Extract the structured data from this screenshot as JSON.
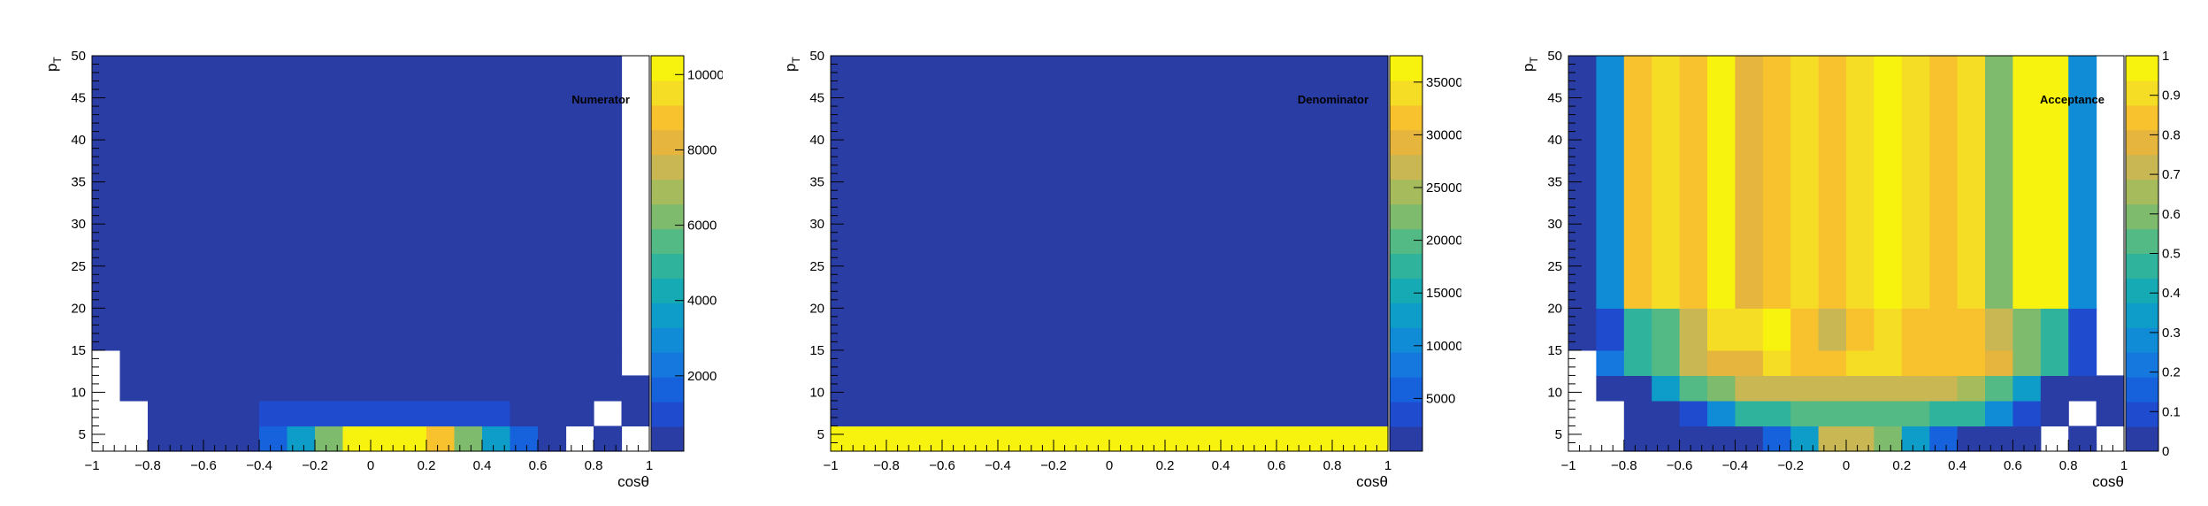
{
  "palette": [
    "#2a3da5",
    "#1f4ccf",
    "#1661dc",
    "#1478df",
    "#108bd6",
    "#0e9cc8",
    "#16aab4",
    "#30b39d",
    "#53b985",
    "#7fbb6c",
    "#a6bb5b",
    "#c8b752",
    "#e5b53e",
    "#f8c22f",
    "#f6dd25",
    "#f7f30f"
  ],
  "chart_data": [
    {
      "type": "heatmap",
      "title": "Numerator",
      "xlabel": "cosθ",
      "ylabel": "p_T",
      "xlim": [
        -1,
        1
      ],
      "ylim": [
        3,
        50
      ],
      "x_edges": [
        -1,
        -0.9,
        -0.8,
        -0.7,
        -0.6,
        -0.5,
        -0.4,
        -0.3,
        -0.2,
        -0.1,
        0,
        0.1,
        0.2,
        0.3,
        0.4,
        0.5,
        0.6,
        0.7,
        0.8,
        0.9,
        1
      ],
      "y_edges": [
        3,
        6,
        9,
        12,
        15,
        20,
        50
      ],
      "x_ticks": [
        -1,
        -0.8,
        -0.6,
        -0.4,
        -0.2,
        0,
        0.2,
        0.4,
        0.6,
        0.8,
        1
      ],
      "x_tick_labels": [
        "−1",
        "−0.8",
        "−0.6",
        "−0.4",
        "−0.2",
        "0",
        "0.2",
        "0.4",
        "0.6",
        "0.8",
        "1"
      ],
      "y_ticks": [
        5,
        10,
        15,
        20,
        25,
        30,
        35,
        40,
        45,
        50
      ],
      "y_tick_labels": [
        "5",
        "10",
        "15",
        "20",
        "25",
        "30",
        "35",
        "40",
        "45",
        "50"
      ],
      "zlim": [
        0,
        10500
      ],
      "z_ticks": [
        2000,
        4000,
        6000,
        8000,
        10000
      ],
      "z_tick_labels": [
        "2000",
        "4000",
        "6000",
        "8000",
        "10000"
      ],
      "values": [
        [
          null,
          null,
          0,
          0,
          0,
          300,
          1500,
          3800,
          6500,
          10000,
          10500,
          10500,
          9000,
          6500,
          3800,
          1500,
          0,
          null,
          0,
          null
        ],
        [
          null,
          null,
          0,
          0,
          0,
          300,
          700,
          700,
          900,
          900,
          900,
          900,
          900,
          700,
          700,
          300,
          0,
          0,
          null,
          0
        ],
        [
          null,
          0,
          0,
          0,
          0,
          0,
          0,
          0,
          0,
          0,
          0,
          0,
          0,
          0,
          0,
          0,
          0,
          0,
          0,
          0
        ],
        [
          null,
          0,
          0,
          0,
          0,
          0,
          0,
          0,
          0,
          0,
          0,
          0,
          0,
          0,
          0,
          0,
          0,
          0,
          0,
          null
        ],
        [
          0,
          0,
          0,
          0,
          0,
          0,
          0,
          0,
          0,
          0,
          0,
          0,
          0,
          0,
          0,
          0,
          0,
          0,
          0,
          null
        ],
        [
          0,
          0,
          0,
          0,
          0,
          0,
          0,
          0,
          0,
          0,
          0,
          0,
          0,
          0,
          0,
          0,
          0,
          0,
          0,
          null
        ]
      ]
    },
    {
      "type": "heatmap",
      "title": "Denominator",
      "xlabel": "cosθ",
      "ylabel": "p_T",
      "xlim": [
        -1,
        1
      ],
      "ylim": [
        3,
        50
      ],
      "x_edges": [
        -1,
        -0.9,
        -0.8,
        -0.7,
        -0.6,
        -0.5,
        -0.4,
        -0.3,
        -0.2,
        -0.1,
        0,
        0.1,
        0.2,
        0.3,
        0.4,
        0.5,
        0.6,
        0.7,
        0.8,
        0.9,
        1
      ],
      "y_edges": [
        3,
        6,
        9,
        50
      ],
      "x_ticks": [
        -1,
        -0.8,
        -0.6,
        -0.4,
        -0.2,
        0,
        0.2,
        0.4,
        0.6,
        0.8,
        1
      ],
      "x_tick_labels": [
        "−1",
        "−0.8",
        "−0.6",
        "−0.4",
        "−0.2",
        "0",
        "0.2",
        "0.4",
        "0.6",
        "0.8",
        "1"
      ],
      "y_ticks": [
        5,
        10,
        15,
        20,
        25,
        30,
        35,
        40,
        45,
        50
      ],
      "y_tick_labels": [
        "5",
        "10",
        "15",
        "20",
        "25",
        "30",
        "35",
        "40",
        "45",
        "50"
      ],
      "zlim": [
        0,
        37500
      ],
      "z_ticks": [
        5000,
        10000,
        15000,
        20000,
        25000,
        30000,
        35000
      ],
      "z_tick_labels": [
        "5000",
        "10000",
        "15000",
        "20000",
        "25000",
        "30000",
        "35000"
      ],
      "values": [
        [
          37000,
          37000,
          37000,
          37000,
          37000,
          37000,
          37000,
          37000,
          37000,
          37000,
          37000,
          37000,
          37000,
          37000,
          37000,
          37000,
          37000,
          37000,
          37000,
          37000
        ],
        [
          1500,
          1500,
          0,
          1500,
          1500,
          1500,
          1500,
          1500,
          1500,
          1500,
          1500,
          1500,
          1500,
          1500,
          1500,
          1500,
          1500,
          0,
          1500,
          1500
        ],
        [
          0,
          0,
          0,
          0,
          0,
          0,
          0,
          0,
          0,
          0,
          0,
          0,
          0,
          0,
          0,
          0,
          0,
          0,
          0,
          0
        ]
      ]
    },
    {
      "type": "heatmap",
      "title": "Acceptance",
      "xlabel": "cosθ",
      "ylabel": "p_T",
      "xlim": [
        -1,
        1
      ],
      "ylim": [
        3,
        50
      ],
      "x_edges": [
        -1,
        -0.9,
        -0.8,
        -0.7,
        -0.6,
        -0.5,
        -0.4,
        -0.3,
        -0.2,
        -0.1,
        0,
        0.1,
        0.2,
        0.3,
        0.4,
        0.5,
        0.6,
        0.7,
        0.8,
        0.9,
        1
      ],
      "y_edges": [
        3,
        6,
        9,
        12,
        15,
        20,
        50
      ],
      "x_ticks": [
        -1,
        -0.8,
        -0.6,
        -0.4,
        -0.2,
        0,
        0.2,
        0.4,
        0.6,
        0.8,
        1
      ],
      "x_tick_labels": [
        "−1",
        "−0.8",
        "−0.6",
        "−0.4",
        "−0.2",
        "0",
        "0.2",
        "0.4",
        "0.6",
        "0.8",
        "1"
      ],
      "y_ticks": [
        5,
        10,
        15,
        20,
        25,
        30,
        35,
        40,
        45,
        50
      ],
      "y_tick_labels": [
        "5",
        "10",
        "15",
        "20",
        "25",
        "30",
        "35",
        "40",
        "45",
        "50"
      ],
      "zlim": [
        0,
        1
      ],
      "z_ticks": [
        0,
        0.1,
        0.2,
        0.3,
        0.4,
        0.5,
        0.6,
        0.7,
        0.8,
        0.9,
        1
      ],
      "z_tick_labels": [
        "0",
        "0.1",
        "0.2",
        "0.3",
        "0.4",
        "0.5",
        "0.6",
        "0.7",
        "0.8",
        "0.9",
        "1"
      ],
      "values": [
        [
          null,
          null,
          0,
          0,
          0,
          0.03,
          0.06,
          0.15,
          0.36,
          0.72,
          0.72,
          0.6,
          0.36,
          0.15,
          0.06,
          0.03,
          0,
          null,
          0,
          null
        ],
        [
          null,
          null,
          0,
          0.03,
          0.09,
          0.28,
          0.45,
          0.45,
          0.5,
          0.5,
          0.5,
          0.5,
          0.5,
          0.45,
          0.45,
          0.28,
          0.09,
          0.03,
          null,
          0
        ],
        [
          null,
          0,
          0.03,
          0.36,
          0.5,
          0.6,
          0.7,
          0.7,
          0.7,
          0.7,
          0.7,
          0.7,
          0.7,
          0.7,
          0.65,
          0.5,
          0.36,
          0.03,
          0,
          0
        ],
        [
          null,
          0.22,
          0.45,
          0.56,
          0.7,
          0.8,
          0.8,
          0.92,
          0.82,
          0.82,
          0.88,
          0.88,
          0.82,
          0.82,
          0.85,
          0.8,
          0.6,
          0.45,
          0.07,
          null
        ],
        [
          0,
          0.1,
          0.45,
          0.56,
          0.7,
          0.92,
          0.92,
          0.96,
          0.82,
          0.72,
          0.82,
          0.92,
          0.86,
          0.82,
          0.86,
          0.72,
          0.6,
          0.45,
          0.1,
          null
        ],
        [
          0,
          0.3,
          0.85,
          0.92,
          0.85,
          0.96,
          0.75,
          0.85,
          0.92,
          0.85,
          0.92,
          0.96,
          0.92,
          0.85,
          0.92,
          0.6,
          0.96,
          0.96,
          0.3,
          null
        ]
      ]
    }
  ]
}
